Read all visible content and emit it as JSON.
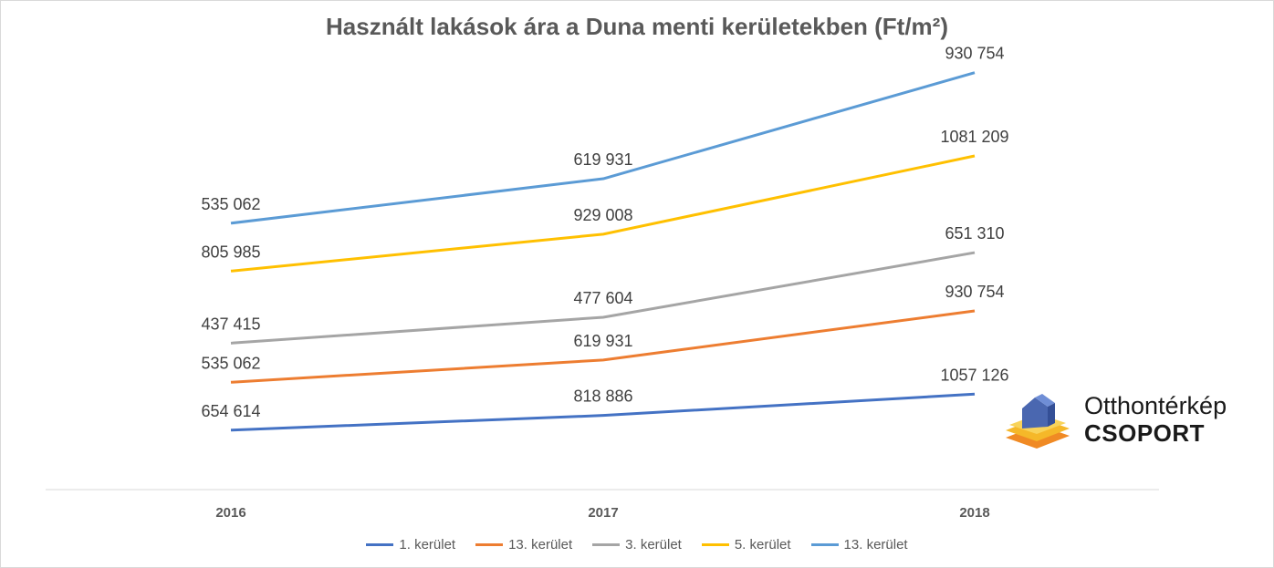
{
  "chart_data": {
    "type": "line",
    "title": "Használt lakások ára a Duna menti kerületekben (Ft/m²)",
    "categories": [
      "2016",
      "2017",
      "2018"
    ],
    "series": [
      {
        "name": "1. kerület",
        "color": "#4472C4",
        "values": [
          654614,
          818886,
          1057126
        ],
        "labels": [
          "654 614",
          "818 886",
          "1057 126"
        ]
      },
      {
        "name": "13. kerület",
        "color": "#ED7D31",
        "values": [
          535062,
          619931,
          930754
        ],
        "labels": [
          "535 062",
          "619 931",
          "930 754"
        ]
      },
      {
        "name": "3. kerület",
        "color": "#A5A5A5",
        "values": [
          437415,
          477604,
          651310
        ],
        "labels": [
          "437 415",
          "477 604",
          "651 310"
        ]
      },
      {
        "name": "5. kerület",
        "color": "#FFC000",
        "values": [
          805985,
          929008,
          1081209
        ],
        "labels": [
          "805 985",
          "929 008",
          "1081 209"
        ]
      },
      {
        "name": "13. kerület",
        "color": "#5B9BD5",
        "values": [
          535062,
          619931,
          930754
        ],
        "labels": [
          "535 062",
          "619 931",
          "930 754"
        ]
      }
    ],
    "stacked": true,
    "grid": false,
    "legend_position": "bottom"
  },
  "logo": {
    "line1": "Otthontérkép",
    "line2": "CSOPORT"
  }
}
